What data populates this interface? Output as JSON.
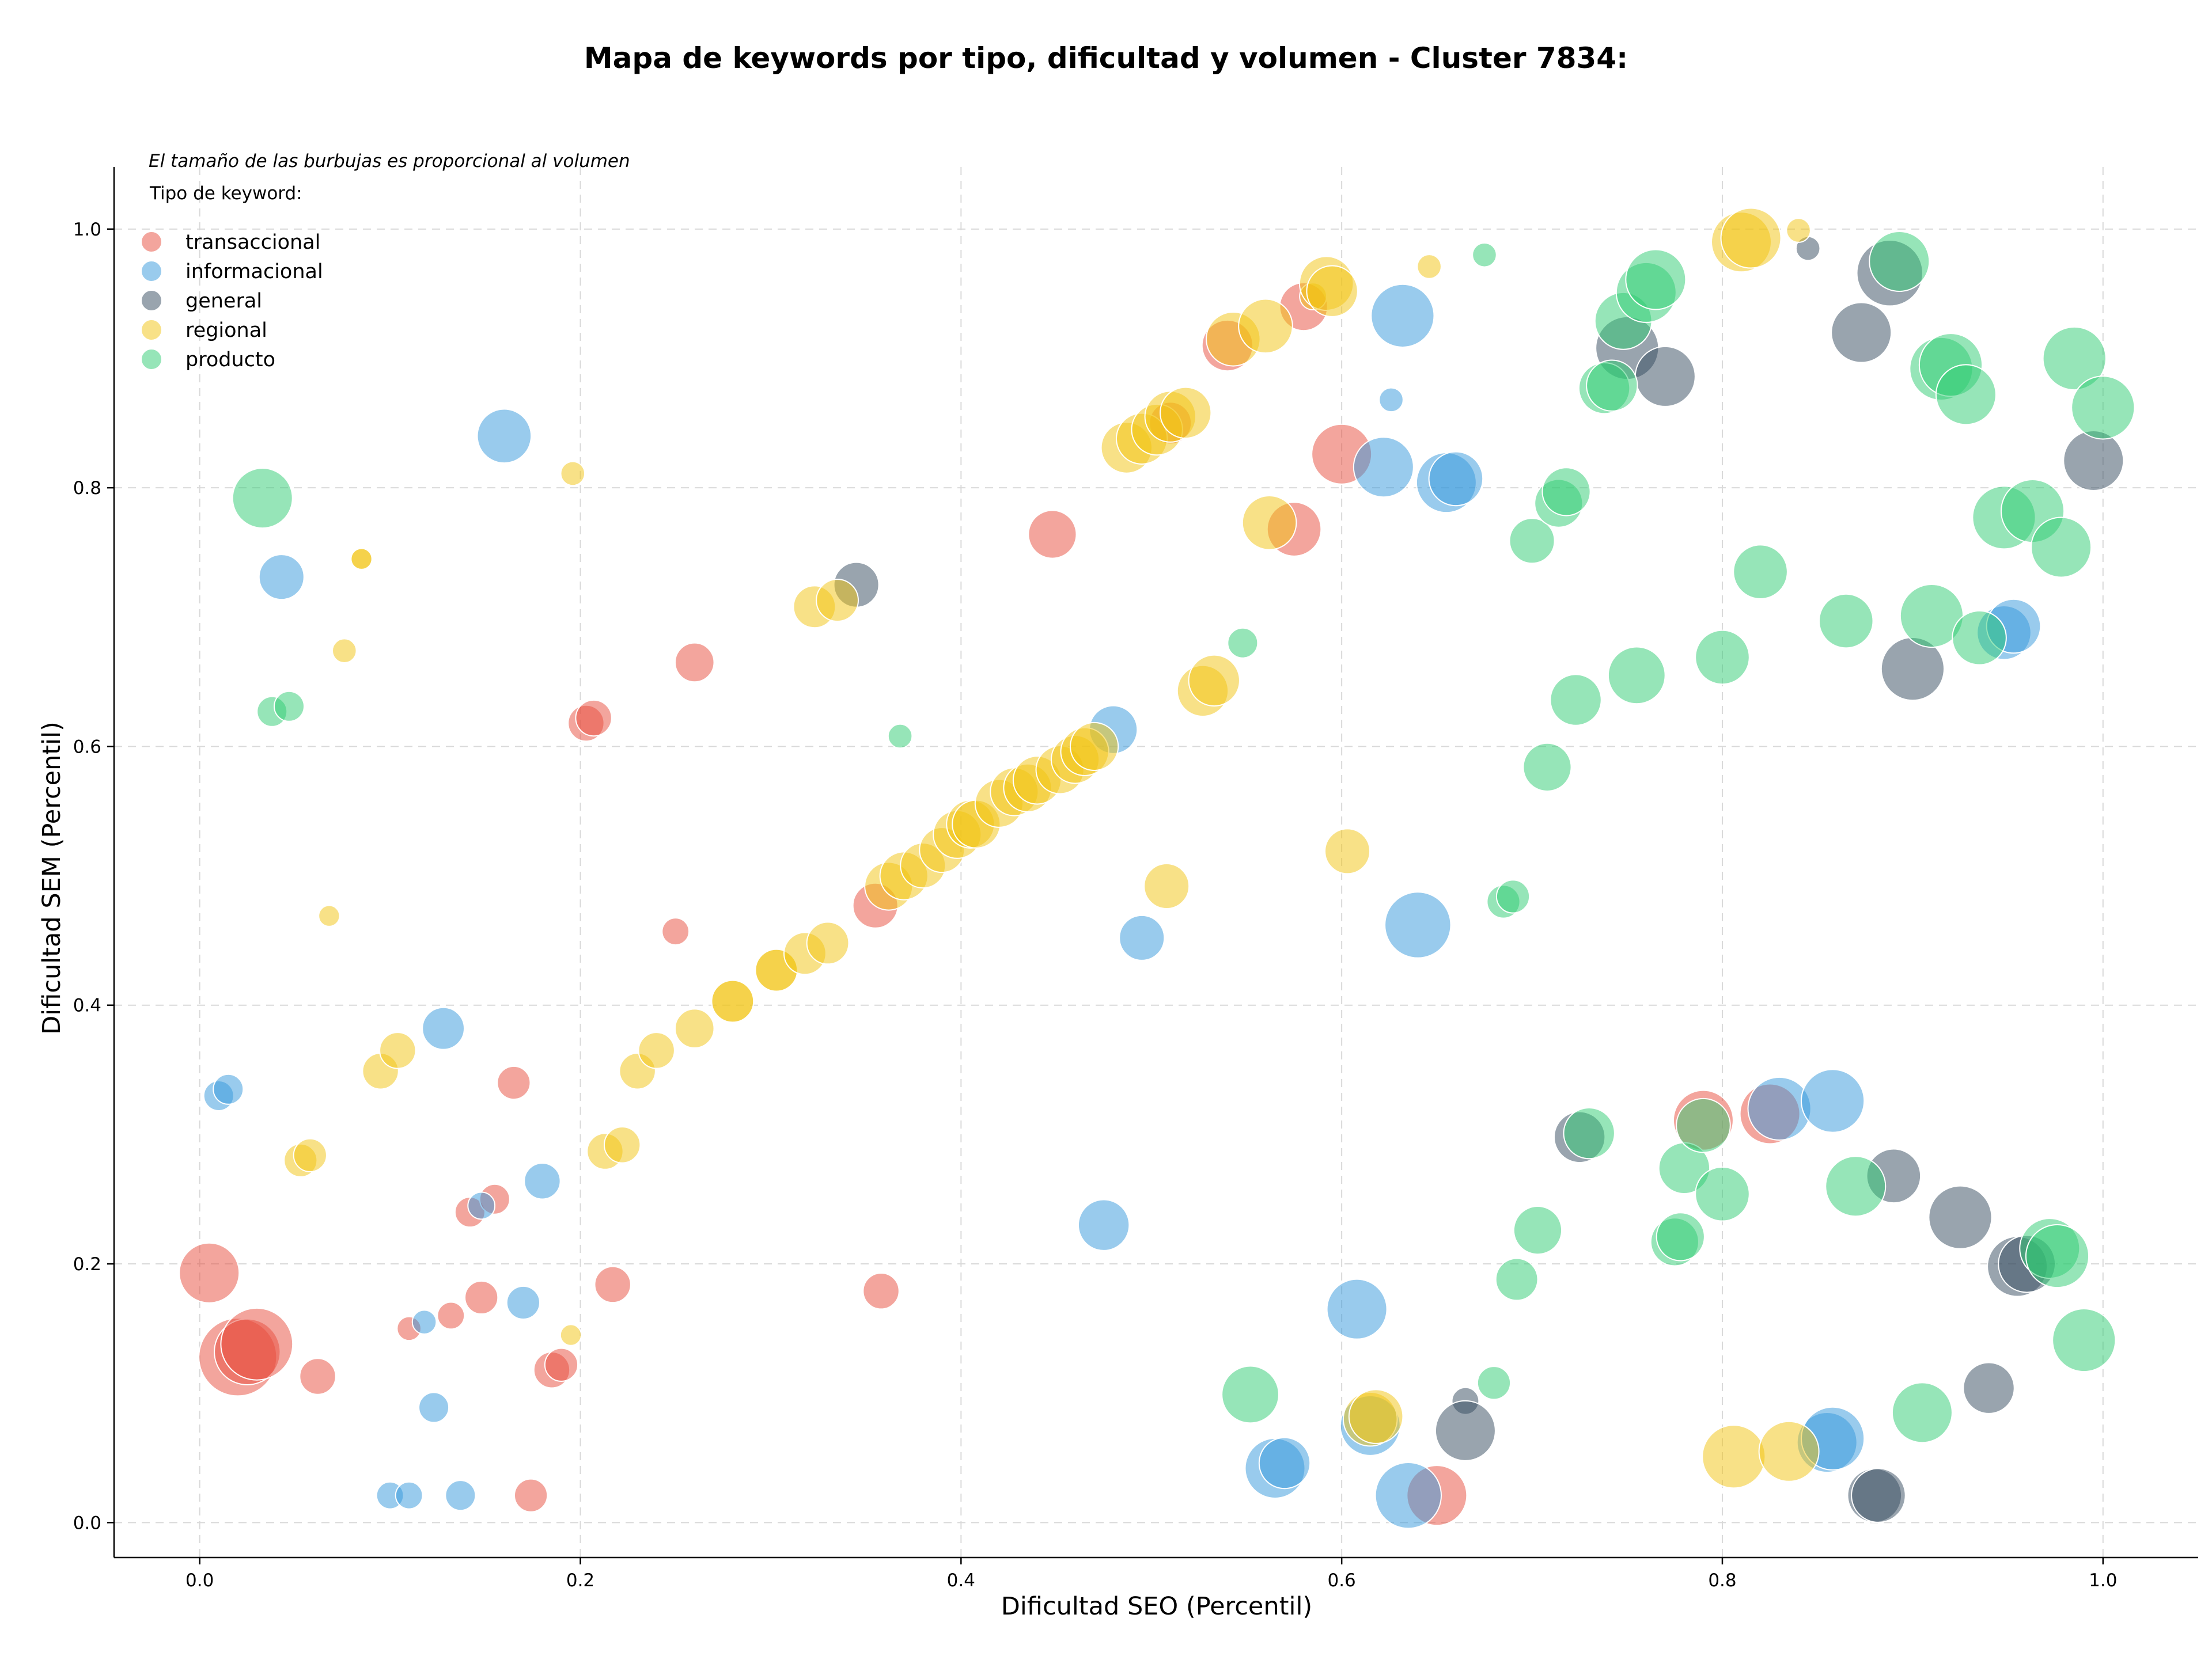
{
  "chart_data": {
    "type": "scatter",
    "title": "Mapa de keywords por tipo, dificultad y volumen - Cluster 7834:",
    "note": "El tamaño de las burbujas es proporcional al volumen",
    "legend_title": "Tipo de keyword:",
    "legend_position": "top-left",
    "xlabel": "Dificultad SEO (Percentil)",
    "ylabel": "Dificultad SEM (Percentil)",
    "xlim": [
      -0.045,
      1.05
    ],
    "ylim": [
      -0.027,
      1.048
    ],
    "xticks": [
      "0.0",
      "0.2",
      "0.4",
      "0.6",
      "0.8",
      "1.0"
    ],
    "yticks": [
      "0.0",
      "0.2",
      "0.4",
      "0.6",
      "0.8",
      "1.0"
    ],
    "xtick_values": [
      0,
      0.2,
      0.4,
      0.6,
      0.8,
      1.0
    ],
    "ytick_values": [
      0,
      0.2,
      0.4,
      0.6,
      0.8,
      1.0
    ],
    "grid": true,
    "size_encoding": "volume",
    "series": [
      {
        "name": "transaccional",
        "color": "#e74c3c",
        "points": [
          [
            0.005,
            0.193,
            1.0
          ],
          [
            0.02,
            0.128,
            1.3
          ],
          [
            0.025,
            0.132,
            1.1
          ],
          [
            0.03,
            0.138,
            1.2
          ],
          [
            0.062,
            0.113,
            0.6
          ],
          [
            0.11,
            0.15,
            0.4
          ],
          [
            0.132,
            0.16,
            0.45
          ],
          [
            0.142,
            0.24,
            0.5
          ],
          [
            0.148,
            0.174,
            0.55
          ],
          [
            0.155,
            0.25,
            0.5
          ],
          [
            0.165,
            0.34,
            0.55
          ],
          [
            0.174,
            0.021,
            0.55
          ],
          [
            0.185,
            0.118,
            0.6
          ],
          [
            0.19,
            0.122,
            0.55
          ],
          [
            0.203,
            0.618,
            0.6
          ],
          [
            0.207,
            0.622,
            0.6
          ],
          [
            0.217,
            0.184,
            0.6
          ],
          [
            0.25,
            0.457,
            0.45
          ],
          [
            0.26,
            0.665,
            0.65
          ],
          [
            0.355,
            0.477,
            0.75
          ],
          [
            0.358,
            0.179,
            0.6
          ],
          [
            0.448,
            0.764,
            0.8
          ],
          [
            0.51,
            0.85,
            0.7
          ],
          [
            0.54,
            0.91,
            0.85
          ],
          [
            0.575,
            0.768,
            0.9
          ],
          [
            0.58,
            0.94,
            0.8
          ],
          [
            0.6,
            0.826,
            1.0
          ],
          [
            0.65,
            0.021,
            1.0
          ],
          [
            0.79,
            0.311,
            1.0
          ],
          [
            0.825,
            0.316,
            1.0
          ]
        ]
      },
      {
        "name": "informacional",
        "color": "#3498db",
        "points": [
          [
            0.01,
            0.33,
            0.5
          ],
          [
            0.015,
            0.335,
            0.5
          ],
          [
            0.043,
            0.731,
            0.75
          ],
          [
            0.1,
            0.021,
            0.45
          ],
          [
            0.11,
            0.021,
            0.45
          ],
          [
            0.118,
            0.155,
            0.4
          ],
          [
            0.123,
            0.089,
            0.5
          ],
          [
            0.128,
            0.382,
            0.7
          ],
          [
            0.137,
            0.021,
            0.5
          ],
          [
            0.148,
            0.245,
            0.45
          ],
          [
            0.16,
            0.84,
            0.9
          ],
          [
            0.17,
            0.17,
            0.55
          ],
          [
            0.18,
            0.264,
            0.6
          ],
          [
            0.475,
            0.23,
            0.85
          ],
          [
            0.48,
            0.613,
            0.8
          ],
          [
            0.495,
            0.452,
            0.75
          ],
          [
            0.565,
            0.042,
            1.0
          ],
          [
            0.57,
            0.046,
            0.85
          ],
          [
            0.608,
            0.165,
            1.0
          ],
          [
            0.615,
            0.075,
            1.0
          ],
          [
            0.622,
            0.816,
            1.0
          ],
          [
            0.626,
            0.868,
            0.4
          ],
          [
            0.632,
            0.933,
            1.05
          ],
          [
            0.635,
            0.021,
            1.1
          ],
          [
            0.64,
            0.462,
            1.1
          ],
          [
            0.655,
            0.804,
            1.0
          ],
          [
            0.66,
            0.807,
            0.9
          ],
          [
            0.83,
            0.32,
            1.05
          ],
          [
            0.855,
            0.062,
            1.0
          ],
          [
            0.858,
            0.065,
            1.05
          ],
          [
            0.858,
            0.326,
            1.05
          ],
          [
            0.948,
            0.688,
            0.9
          ],
          [
            0.953,
            0.693,
            0.9
          ]
        ]
      },
      {
        "name": "general",
        "color": "#34495e",
        "points": [
          [
            0.345,
            0.725,
            0.75
          ],
          [
            0.665,
            0.094,
            0.45
          ],
          [
            0.665,
            0.071,
            1.0
          ],
          [
            0.725,
            0.298,
            0.85
          ],
          [
            0.75,
            0.908,
            1.05
          ],
          [
            0.77,
            0.886,
            1.0
          ],
          [
            0.845,
            0.985,
            0.4
          ],
          [
            0.873,
            0.92,
            1.0
          ],
          [
            0.88,
            0.021,
            0.9
          ],
          [
            0.882,
            0.021,
            0.9
          ],
          [
            0.888,
            0.966,
            1.1
          ],
          [
            0.89,
            0.268,
            0.9
          ],
          [
            0.9,
            0.66,
            1.05
          ],
          [
            0.925,
            0.236,
            1.05
          ],
          [
            0.94,
            0.104,
            0.85
          ],
          [
            0.955,
            0.198,
            1.0
          ],
          [
            0.96,
            0.2,
            0.95
          ],
          [
            0.995,
            0.821,
            1.0
          ]
        ]
      },
      {
        "name": "regional",
        "color": "#f1c40f",
        "points": [
          [
            0.053,
            0.28,
            0.55
          ],
          [
            0.058,
            0.284,
            0.55
          ],
          [
            0.068,
            0.469,
            0.35
          ],
          [
            0.076,
            0.674,
            0.4
          ],
          [
            0.085,
            0.745,
            0.35
          ],
          [
            0.085,
            0.745,
            0.35
          ],
          [
            0.095,
            0.349,
            0.6
          ],
          [
            0.104,
            0.365,
            0.6
          ],
          [
            0.195,
            0.145,
            0.35
          ],
          [
            0.196,
            0.811,
            0.4
          ],
          [
            0.213,
            0.287,
            0.6
          ],
          [
            0.222,
            0.292,
            0.6
          ],
          [
            0.23,
            0.349,
            0.6
          ],
          [
            0.24,
            0.365,
            0.6
          ],
          [
            0.26,
            0.382,
            0.65
          ],
          [
            0.28,
            0.403,
            0.7
          ],
          [
            0.28,
            0.403,
            0.7
          ],
          [
            0.303,
            0.427,
            0.7
          ],
          [
            0.303,
            0.427,
            0.7
          ],
          [
            0.318,
            0.44,
            0.7
          ],
          [
            0.323,
            0.708,
            0.7
          ],
          [
            0.33,
            0.448,
            0.7
          ],
          [
            0.335,
            0.713,
            0.7
          ],
          [
            0.362,
            0.492,
            0.8
          ],
          [
            0.37,
            0.5,
            0.8
          ],
          [
            0.38,
            0.508,
            0.75
          ],
          [
            0.39,
            0.52,
            0.75
          ],
          [
            0.398,
            0.532,
            0.8
          ],
          [
            0.405,
            0.54,
            0.8
          ],
          [
            0.408,
            0.54,
            0.8
          ],
          [
            0.42,
            0.556,
            0.8
          ],
          [
            0.428,
            0.565,
            0.8
          ],
          [
            0.435,
            0.568,
            0.8
          ],
          [
            0.44,
            0.574,
            0.8
          ],
          [
            0.452,
            0.582,
            0.8
          ],
          [
            0.46,
            0.59,
            0.8
          ],
          [
            0.465,
            0.596,
            0.8
          ],
          [
            0.47,
            0.6,
            0.8
          ],
          [
            0.487,
            0.831,
            0.85
          ],
          [
            0.495,
            0.838,
            0.85
          ],
          [
            0.503,
            0.845,
            0.85
          ],
          [
            0.51,
            0.855,
            0.85
          ],
          [
            0.518,
            0.858,
            0.85
          ],
          [
            0.508,
            0.492,
            0.75
          ],
          [
            0.527,
            0.643,
            0.85
          ],
          [
            0.533,
            0.651,
            0.85
          ],
          [
            0.543,
            0.915,
            0.9
          ],
          [
            0.56,
            0.925,
            0.9
          ],
          [
            0.562,
            0.773,
            0.9
          ],
          [
            0.585,
            0.948,
            0.45
          ],
          [
            0.592,
            0.958,
            0.9
          ],
          [
            0.595,
            0.952,
            0.85
          ],
          [
            0.603,
            0.519,
            0.75
          ],
          [
            0.615,
            0.08,
            0.9
          ],
          [
            0.618,
            0.082,
            0.9
          ],
          [
            0.646,
            0.971,
            0.4
          ],
          [
            0.806,
            0.051,
            1.05
          ],
          [
            0.81,
            0.99,
            1.0
          ],
          [
            0.815,
            0.993,
            1.0
          ],
          [
            0.835,
            0.055,
            1.0
          ],
          [
            0.84,
            0.999,
            0.4
          ]
        ]
      },
      {
        "name": "producto",
        "color": "#2ecc71",
        "points": [
          [
            0.033,
            0.792,
            1.0
          ],
          [
            0.038,
            0.627,
            0.5
          ],
          [
            0.047,
            0.631,
            0.5
          ],
          [
            0.368,
            0.608,
            0.4
          ],
          [
            0.548,
            0.68,
            0.5
          ],
          [
            0.552,
            0.099,
            0.95
          ],
          [
            0.675,
            0.98,
            0.4
          ],
          [
            0.68,
            0.108,
            0.55
          ],
          [
            0.685,
            0.48,
            0.55
          ],
          [
            0.69,
            0.484,
            0.55
          ],
          [
            0.692,
            0.188,
            0.7
          ],
          [
            0.7,
            0.759,
            0.75
          ],
          [
            0.703,
            0.226,
            0.8
          ],
          [
            0.708,
            0.584,
            0.8
          ],
          [
            0.714,
            0.788,
            0.8
          ],
          [
            0.718,
            0.797,
            0.8
          ],
          [
            0.723,
            0.636,
            0.85
          ],
          [
            0.73,
            0.301,
            0.85
          ],
          [
            0.738,
            0.877,
            0.85
          ],
          [
            0.742,
            0.879,
            0.85
          ],
          [
            0.748,
            0.929,
            0.95
          ],
          [
            0.755,
            0.655,
            0.95
          ],
          [
            0.76,
            0.951,
            1.0
          ],
          [
            0.765,
            0.961,
            1.0
          ],
          [
            0.775,
            0.217,
            0.8
          ],
          [
            0.778,
            0.221,
            0.8
          ],
          [
            0.78,
            0.274,
            0.85
          ],
          [
            0.79,
            0.307,
            0.9
          ],
          [
            0.8,
            0.254,
            0.9
          ],
          [
            0.8,
            0.669,
            0.9
          ],
          [
            0.82,
            0.735,
            0.9
          ],
          [
            0.865,
            0.697,
            0.9
          ],
          [
            0.87,
            0.26,
            1.0
          ],
          [
            0.893,
            0.975,
            1.0
          ],
          [
            0.905,
            0.085,
            1.0
          ],
          [
            0.91,
            0.701,
            1.05
          ],
          [
            0.915,
            0.892,
            1.05
          ],
          [
            0.92,
            0.895,
            1.05
          ],
          [
            0.928,
            0.872,
            1.0
          ],
          [
            0.935,
            0.684,
            0.9
          ],
          [
            0.948,
            0.777,
            1.05
          ],
          [
            0.963,
            0.782,
            1.05
          ],
          [
            0.972,
            0.212,
            1.0
          ],
          [
            0.976,
            0.206,
            1.05
          ],
          [
            0.978,
            0.754,
            1.0
          ],
          [
            0.985,
            0.9,
            1.05
          ],
          [
            0.99,
            0.141,
            1.05
          ],
          [
            1.0,
            0.862,
            1.05
          ]
        ]
      }
    ]
  }
}
